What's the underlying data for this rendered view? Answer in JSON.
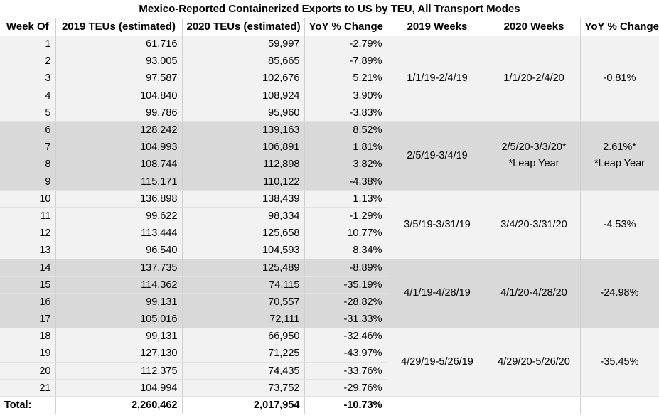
{
  "title": "Mexico-Reported Containerized Exports to US by TEU, All Transport Modes",
  "headers": [
    "Week Of",
    "2019 TEUs (estimated)",
    "2020 TEUs (estimated)",
    "YoY % Change",
    "2019 Weeks",
    "2020 Weeks",
    "YoY % Change"
  ],
  "rows": [
    {
      "week": "1",
      "teu2019": "61,716",
      "teu2020": "59,997",
      "yoy": "-2.79%"
    },
    {
      "week": "2",
      "teu2019": "93,005",
      "teu2020": "85,665",
      "yoy": "-7.89%"
    },
    {
      "week": "3",
      "teu2019": "97,587",
      "teu2020": "102,676",
      "yoy": "5.21%"
    },
    {
      "week": "4",
      "teu2019": "104,840",
      "teu2020": "108,924",
      "yoy": "3.90%"
    },
    {
      "week": "5",
      "teu2019": "99,786",
      "teu2020": "95,960",
      "yoy": "-3.83%"
    },
    {
      "week": "6",
      "teu2019": "128,242",
      "teu2020": "139,163",
      "yoy": "8.52%"
    },
    {
      "week": "7",
      "teu2019": "104,993",
      "teu2020": "106,891",
      "yoy": "1.81%"
    },
    {
      "week": "8",
      "teu2019": "108,744",
      "teu2020": "112,898",
      "yoy": "3.82%"
    },
    {
      "week": "9",
      "teu2019": "115,171",
      "teu2020": "110,122",
      "yoy": "-4.38%"
    },
    {
      "week": "10",
      "teu2019": "136,898",
      "teu2020": "138,439",
      "yoy": "1.13%"
    },
    {
      "week": "11",
      "teu2019": "99,622",
      "teu2020": "98,334",
      "yoy": "-1.29%"
    },
    {
      "week": "12",
      "teu2019": "113,444",
      "teu2020": "125,658",
      "yoy": "10.77%"
    },
    {
      "week": "13",
      "teu2019": "96,540",
      "teu2020": "104,593",
      "yoy": "8.34%"
    },
    {
      "week": "14",
      "teu2019": "137,735",
      "teu2020": "125,489",
      "yoy": "-8.89%"
    },
    {
      "week": "15",
      "teu2019": "114,362",
      "teu2020": "74,115",
      "yoy": "-35.19%"
    },
    {
      "week": "16",
      "teu2019": "99,131",
      "teu2020": "70,557",
      "yoy": "-28.82%"
    },
    {
      "week": "17",
      "teu2019": "105,016",
      "teu2020": "72,111",
      "yoy": "-31.33%"
    },
    {
      "week": "18",
      "teu2019": "99,131",
      "teu2020": "66,950",
      "yoy": "-32.46%"
    },
    {
      "week": "19",
      "teu2019": "127,130",
      "teu2020": "71,225",
      "yoy": "-43.97%"
    },
    {
      "week": "20",
      "teu2019": "112,375",
      "teu2020": "74,435",
      "yoy": "-33.76%"
    },
    {
      "week": "21",
      "teu2019": "104,994",
      "teu2020": "73,752",
      "yoy": "-29.76%"
    }
  ],
  "groups": [
    {
      "weeks2019": "1/1/19-2/4/19",
      "weeks2020_line1": "1/1/20-2/4/20",
      "weeks2020_line2": "",
      "yoy_line1": "-0.81%",
      "yoy_line2": ""
    },
    {
      "weeks2019": "2/5/19-3/4/19",
      "weeks2020_line1": "2/5/20-3/3/20*",
      "weeks2020_line2": "*Leap Year",
      "yoy_line1": "2.61%*",
      "yoy_line2": "*Leap Year"
    },
    {
      "weeks2019": "3/5/19-3/31/19",
      "weeks2020_line1": "3/4/20-3/31/20",
      "weeks2020_line2": "",
      "yoy_line1": "-4.53%",
      "yoy_line2": ""
    },
    {
      "weeks2019": "4/1/19-4/28/19",
      "weeks2020_line1": "4/1/20-4/28/20",
      "weeks2020_line2": "",
      "yoy_line1": "-24.98%",
      "yoy_line2": ""
    },
    {
      "weeks2019": "4/29/19-5/26/19",
      "weeks2020_line1": "4/29/20-5/26/20",
      "weeks2020_line2": "",
      "yoy_line1": "-35.45%",
      "yoy_line2": ""
    }
  ],
  "total": {
    "label": "Total:",
    "teu2019": "2,260,462",
    "teu2020": "2,017,954",
    "yoy": "-10.73%"
  }
}
